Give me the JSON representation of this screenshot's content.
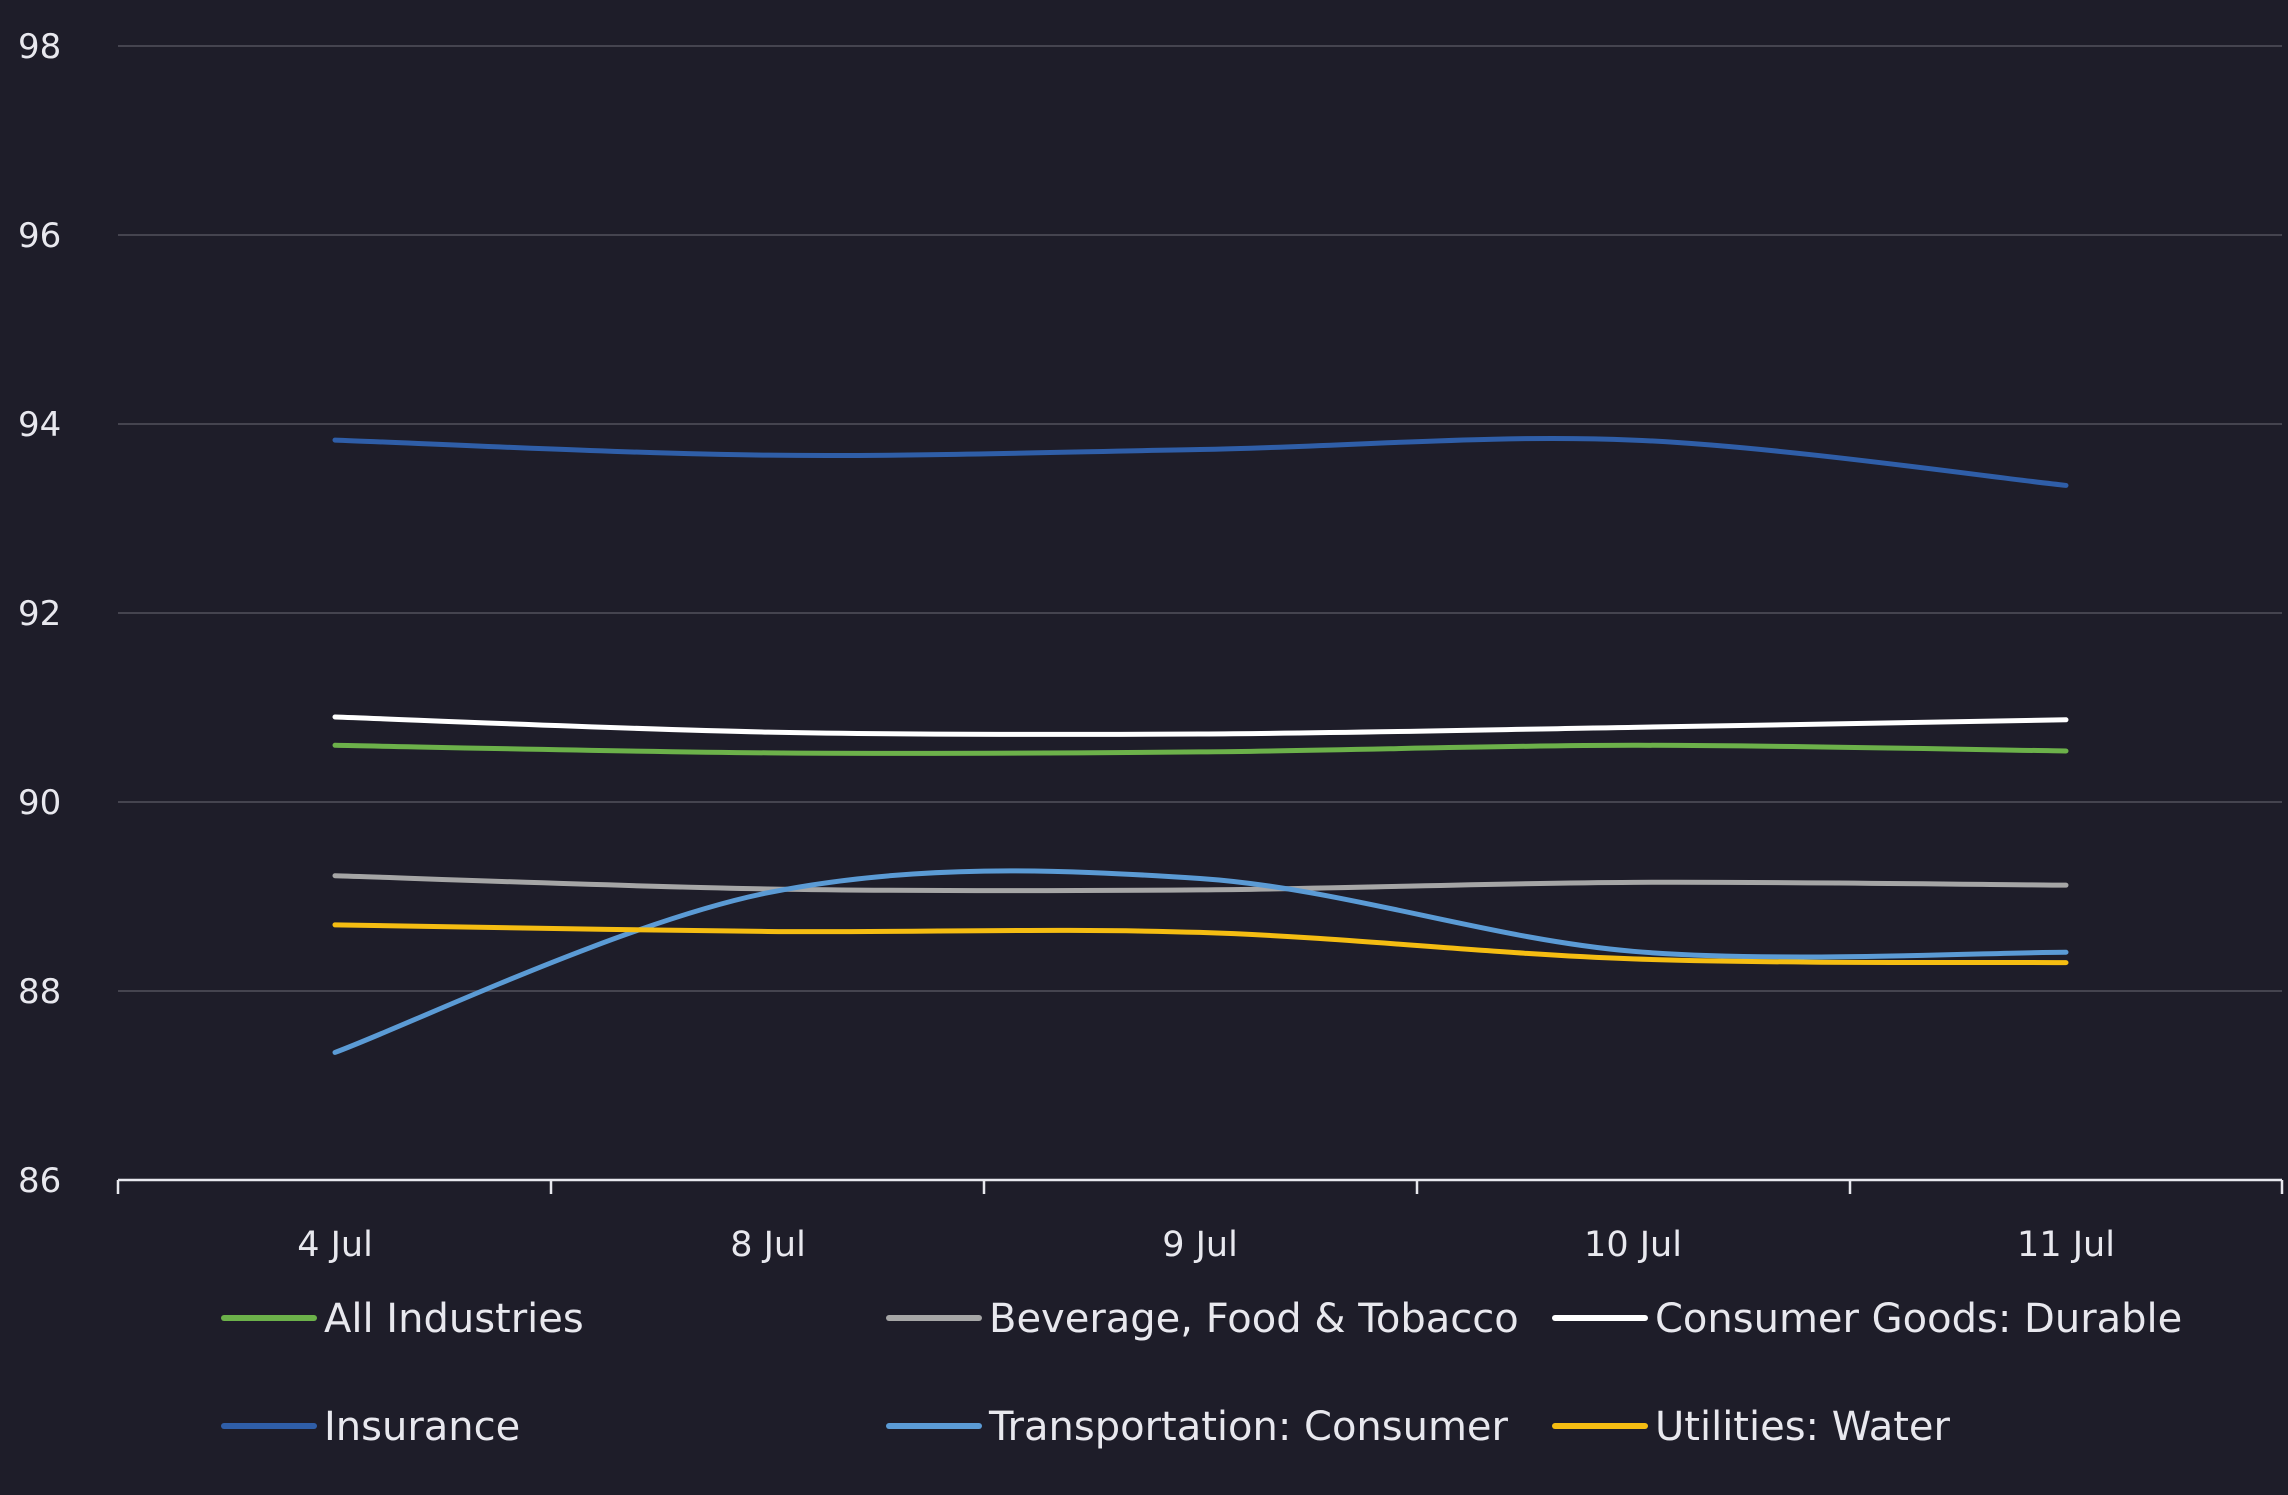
{
  "chart_data": {
    "type": "line",
    "title": "",
    "xlabel": "",
    "ylabel": "",
    "categories": [
      "4 Jul",
      "8 Jul",
      "9 Jul",
      "10 Jul",
      "11 Jul"
    ],
    "ylim": [
      86,
      98
    ],
    "yticks": [
      86,
      88,
      90,
      92,
      94,
      96,
      98
    ],
    "grid": true,
    "legend_position": "bottom",
    "smooth": true,
    "series": [
      {
        "name": "All Industries",
        "color": "#6cb14a",
        "values": [
          90.6,
          90.52,
          90.53,
          90.6,
          90.54
        ]
      },
      {
        "name": "Beverage, Food & Tobacco",
        "color": "#a6a6a6",
        "values": [
          89.22,
          89.08,
          89.07,
          89.15,
          89.12
        ]
      },
      {
        "name": "Consumer Goods: Durable",
        "color": "#ffffff",
        "values": [
          90.9,
          90.74,
          90.72,
          90.79,
          90.87
        ]
      },
      {
        "name": "Insurance",
        "color": "#2f5ea8",
        "values": [
          93.83,
          93.67,
          93.73,
          93.83,
          93.35
        ]
      },
      {
        "name": "Transportation: Consumer",
        "color": "#5b9bd5",
        "values": [
          87.35,
          89.04,
          89.19,
          88.42,
          88.41
        ]
      },
      {
        "name": "Utilities: Water",
        "color": "#f5bd12",
        "values": [
          88.7,
          88.63,
          88.62,
          88.34,
          88.3
        ]
      }
    ]
  }
}
